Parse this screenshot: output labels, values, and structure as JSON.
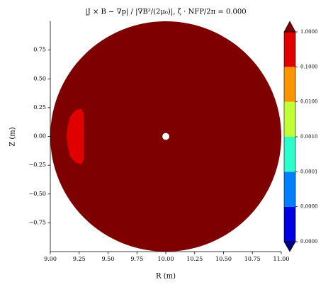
{
  "chart_data": {
    "type": "contourf",
    "title": "|J × B − ∇p| / |∇B²/(2μ₀)|, ζ · NFP/2π = 0.000",
    "x_label": "R (m)",
    "y_label": "Z (m)",
    "xlim": [
      9.0,
      11.0
    ],
    "ylim": [
      -1.0,
      1.0
    ],
    "xticks": [
      {
        "value": 9,
        "label": "9.00"
      },
      9.25,
      {
        "value": 9.5,
        "label": "9.50"
      },
      9.75,
      {
        "value": 10,
        "label": "10.00"
      },
      10.25,
      {
        "value": 10.5,
        "label": "10.50"
      },
      10.75,
      {
        "value": 11,
        "label": "11.00"
      }
    ],
    "yticks": [
      {
        "value": -0.75,
        "label": "−0.75"
      },
      {
        "value": -0.5,
        "label": "−0.50"
      },
      {
        "value": -0.25,
        "label": "−0.25"
      },
      {
        "value": 0,
        "label": "0.00"
      },
      0.25,
      {
        "value": 0.5,
        "label": "0.50"
      },
      0.75
    ],
    "regions": [
      {
        "shape": "circle",
        "color": "#7f0000",
        "cx": 10.0,
        "cy": 0.0,
        "r": 1.0
      },
      {
        "shape": "polygon",
        "color": "#e00000",
        "x": [
          9.27,
          9.29,
          9.29,
          9.27,
          9.22,
          9.17,
          9.15,
          9.14,
          9.15,
          9.17,
          9.22
        ],
        "y": [
          0.24,
          0.2,
          -0.2,
          -0.24,
          -0.23,
          -0.17,
          -0.08,
          0.0,
          0.08,
          0.17,
          0.23
        ]
      },
      {
        "shape": "circle",
        "color": "#ffffff",
        "cx": 10.0,
        "cy": 0.0,
        "r": 0.03
      }
    ],
    "colorbar": {
      "log": true,
      "ticks": [
        {
          "value": 1e-06,
          "label": "0.0000"
        },
        {
          "value": 1e-05,
          "label": "0.0000"
        },
        {
          "value": 0.0001,
          "label": "0.0001"
        },
        {
          "value": 0.001,
          "label": "0.0010"
        },
        {
          "value": 0.01,
          "label": "0.0100"
        },
        {
          "value": 0.1,
          "label": "0.1000"
        },
        {
          "value": 1,
          "label": "1.0000"
        }
      ],
      "colors": [
        "#0000e0",
        "#0080ff",
        "#2affcc",
        "#c0ff33",
        "#ff9400",
        "#e00000"
      ],
      "under_color": "#00007f",
      "over_color": "#7f0000"
    }
  }
}
